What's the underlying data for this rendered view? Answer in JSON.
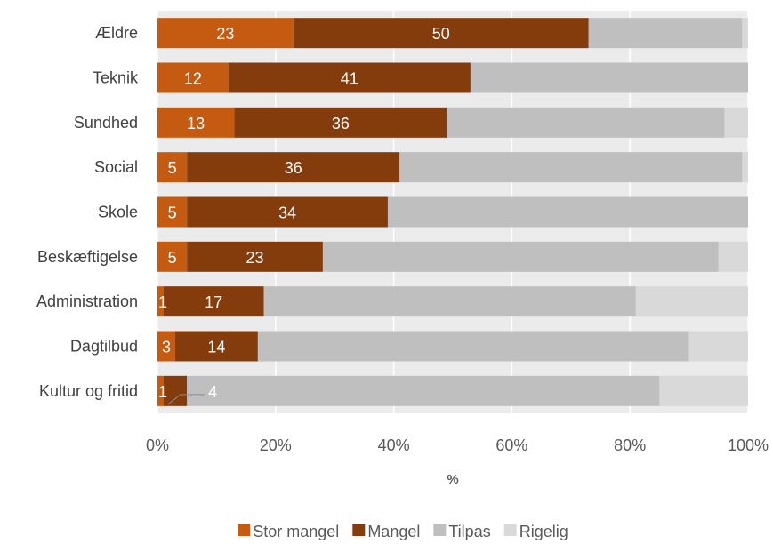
{
  "chart_data": {
    "type": "bar",
    "orientation": "horizontal",
    "stacking": "percent",
    "categories": [
      "Ældre",
      "Teknik",
      "Sundhed",
      "Social",
      "Skole",
      "Beskæftigelse",
      "Administration",
      "Dagtilbud",
      "Kultur og fritid"
    ],
    "series": [
      {
        "name": "Stor mangel",
        "color": "#c55a11",
        "values": [
          23,
          12,
          13,
          5,
          5,
          5,
          1,
          3,
          1
        ],
        "labels": [
          "23",
          "12",
          "13",
          "5",
          "5",
          "5",
          "1",
          "3",
          "1"
        ]
      },
      {
        "name": "Mangel",
        "color": "#843c0c",
        "values": [
          50,
          41,
          36,
          36,
          34,
          23,
          17,
          14,
          4
        ],
        "labels": [
          "50",
          "41",
          "36",
          "36",
          "34",
          "23",
          "17",
          "14",
          "4"
        ]
      },
      {
        "name": "Tilpas",
        "color": "#bfbfbf",
        "values": [
          26,
          47,
          47,
          58,
          61,
          67,
          63,
          73,
          80
        ]
      },
      {
        "name": "Rigelig",
        "color": "#d9d9d9",
        "values": [
          1,
          0,
          4,
          1,
          0,
          5,
          19,
          10,
          15
        ]
      }
    ],
    "xlabel": "%",
    "ylabel": "",
    "xlim": [
      0,
      100
    ],
    "xticks": [
      "0%",
      "20%",
      "40%",
      "60%",
      "80%",
      "100%"
    ],
    "grid": true,
    "legend_position": "bottom",
    "plot_background": "#ebebeb",
    "gridline_color": "#ffffff"
  }
}
